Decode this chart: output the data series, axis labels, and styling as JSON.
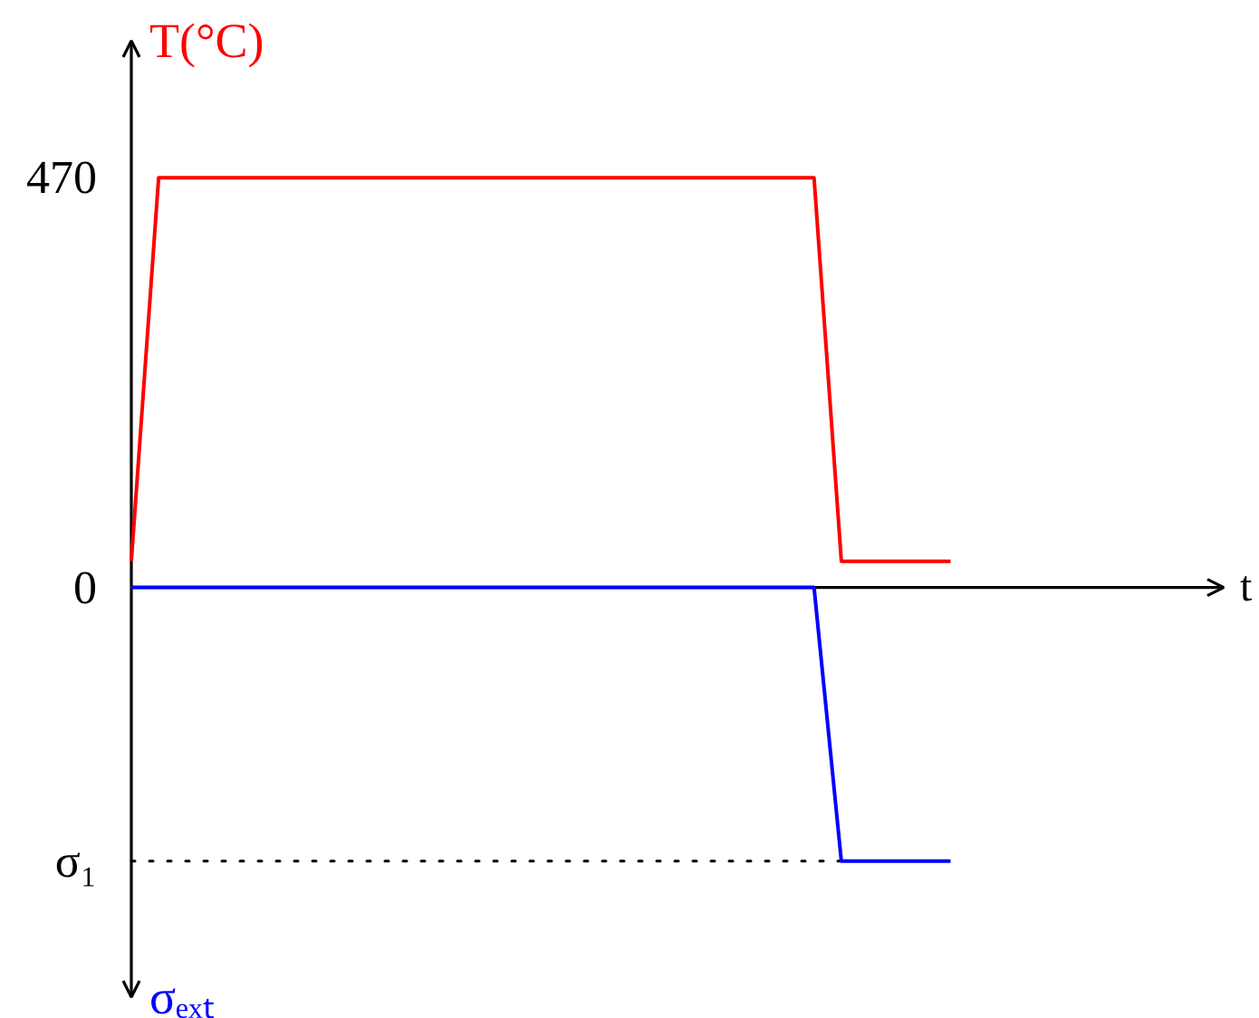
{
  "chart_data": {
    "type": "line",
    "xlabel": "t",
    "categories": [
      null,
      null,
      null,
      null,
      null,
      null,
      null,
      null,
      null,
      null,
      null,
      null,
      null,
      null,
      null,
      null,
      null,
      null,
      null,
      null,
      null,
      null,
      null,
      null,
      null,
      null,
      null,
      null,
      null,
      null,
      null,
      null,
      null,
      null,
      null,
      null,
      null,
      null,
      null,
      null,
      null
    ],
    "series": [
      {
        "name": "T(°C)",
        "color": "#ff0000",
        "values": [
          30,
          470,
          470,
          470,
          470,
          470,
          470,
          470,
          470,
          470,
          470,
          470,
          470,
          470,
          470,
          470,
          470,
          470,
          470,
          470,
          470,
          470,
          470,
          470,
          470,
          470,
          30,
          30,
          30,
          30,
          30,
          null,
          null,
          null,
          null,
          null,
          null,
          null,
          null,
          null,
          null
        ]
      },
      {
        "name": "σₑₓₜ",
        "color": "#0000ff",
        "values": [
          0,
          0,
          0,
          0,
          0,
          0,
          0,
          0,
          0,
          0,
          0,
          0,
          0,
          0,
          0,
          0,
          0,
          0,
          0,
          0,
          0,
          0,
          0,
          0,
          0,
          0,
          -314,
          -314,
          -314,
          -314,
          -314,
          null,
          null,
          null,
          null,
          null,
          null,
          null,
          null,
          null,
          null
        ]
      }
    ],
    "ylim": [
      -470,
      627
    ],
    "yticks": [
      470,
      0,
      {
        "value": -314,
        "label": "σ₁"
      }
    ],
    "ref_lines": [
      {
        "axis": "y",
        "value": -314,
        "color": "#000000",
        "line_style": "dotted"
      }
    ],
    "tick_labels": "y"
  }
}
